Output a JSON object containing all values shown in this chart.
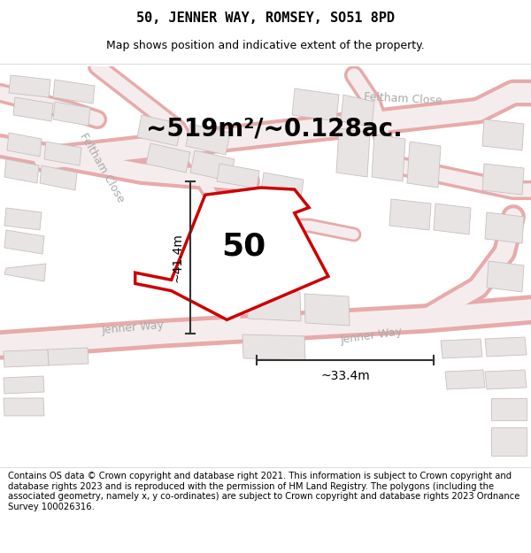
{
  "title": "50, JENNER WAY, ROMSEY, SO51 8PD",
  "subtitle": "Map shows position and indicative extent of the property.",
  "footer": "Contains OS data © Crown copyright and database right 2021. This information is subject to Crown copyright and database rights 2023 and is reproduced with the permission of HM Land Registry. The polygons (including the associated geometry, namely x, y co-ordinates) are subject to Crown copyright and database rights 2023 Ordnance Survey 100026316.",
  "area_label": "~519m²/~0.128ac.",
  "property_number": "50",
  "dim_vertical": "~41.4m",
  "dim_horizontal": "~33.4m",
  "road_label_fc_top": "Feltham Close",
  "road_label_fc_left": "Feltham Close",
  "road_label_jw_bottom": "Jenner Way",
  "road_label_jw_mid": "Jenner Way",
  "map_bg": "#f7f3f3",
  "building_fill": "#e8e4e4",
  "building_edge": "#c8c0c0",
  "road_fill": "#f5eded",
  "road_edge": "#e8aaaa",
  "property_color": "#cc0000",
  "dim_color": "#333333",
  "road_label_color": "#aaaaaa",
  "title_fontsize": 11,
  "subtitle_fontsize": 9,
  "footer_fontsize": 7.2,
  "area_fontsize": 20,
  "number_fontsize": 26,
  "dim_fontsize": 10,
  "road_fontsize": 9
}
